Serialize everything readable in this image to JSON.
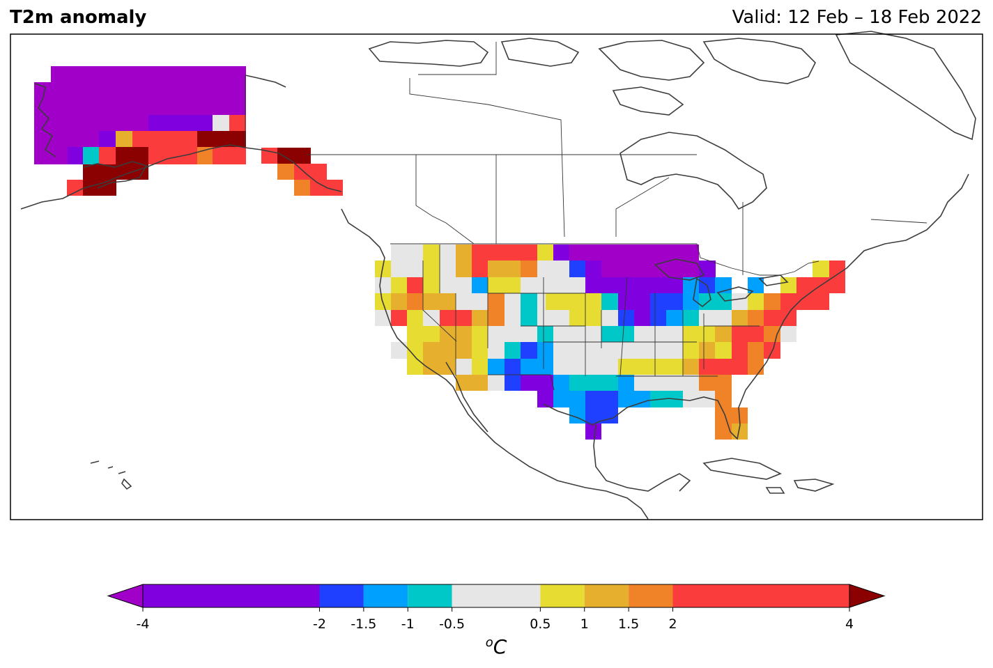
{
  "header": {
    "title": "T2m anomaly",
    "valid": "Valid: 12 Feb – 18 Feb 2022"
  },
  "colorbar": {
    "unit_label": "oC",
    "unit_base": "C",
    "unit_sup": "o",
    "levels": [
      -4,
      -2,
      -1.5,
      -1,
      -0.5,
      0.5,
      1,
      1.5,
      2,
      4
    ],
    "tick_labels": [
      "-4",
      "-2",
      "-1.5",
      "-1",
      "-0.5",
      "0.5",
      "1",
      "1.5",
      "2",
      "4"
    ],
    "bin_colors": [
      "#8000e0",
      "#2040ff",
      "#00a0ff",
      "#00c8c8",
      "#e6e6e6",
      "#e6dc32",
      "#e6af2d",
      "#f08228",
      "#fa3c3c"
    ],
    "under_color": "#a000c8",
    "over_color": "#8b0000"
  },
  "colors": {
    "coastline": "#3c3c3c",
    "border": "#000000",
    "land": "#ffffff"
  }
}
